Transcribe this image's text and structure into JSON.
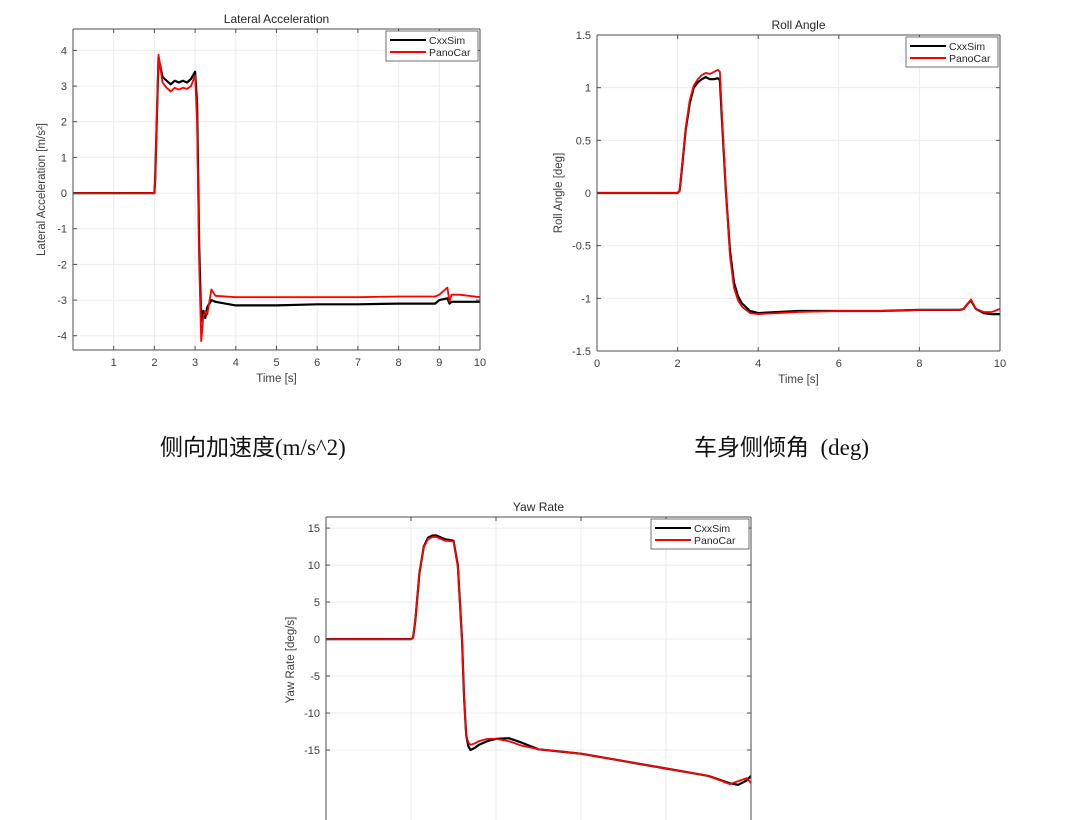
{
  "captions": {
    "lateral": "侧向加速度(m/s^2)",
    "roll": "车身侧倾角  (deg)"
  },
  "series_colors": {
    "CxxSim": "#000000",
    "PanoCar": "#ff0000"
  },
  "chart_data": [
    {
      "id": "lateral",
      "type": "line",
      "title": "Lateral Acceleration",
      "xlabel": "Time [s]",
      "ylabel": "Lateral Acceleration [m/s²]",
      "xlim": [
        0,
        10
      ],
      "ylim": [
        -4.4,
        4.6
      ],
      "xticks": [
        1,
        2,
        3,
        4,
        5,
        6,
        7,
        8,
        9,
        10
      ],
      "yticks": [
        -4,
        -3,
        -2,
        -1,
        0,
        1,
        2,
        3,
        4
      ],
      "grid": true,
      "legend": {
        "position": "northeast",
        "entries": [
          "CxxSim",
          "PanoCar"
        ]
      },
      "series": [
        {
          "name": "CxxSim",
          "color": "#000000",
          "x": [
            0,
            2.0,
            2.02,
            2.1,
            2.2,
            2.3,
            2.4,
            2.5,
            2.6,
            2.7,
            2.8,
            2.9,
            3.0,
            3.05,
            3.1,
            3.15,
            3.2,
            3.25,
            3.3,
            3.4,
            3.5,
            4.0,
            5.0,
            6.0,
            7.0,
            8.0,
            8.9,
            9.0,
            9.2,
            9.25,
            9.3,
            9.5,
            10.0
          ],
          "y": [
            0,
            0,
            0.4,
            3.8,
            3.25,
            3.15,
            3.05,
            3.15,
            3.1,
            3.15,
            3.1,
            3.2,
            3.4,
            2.5,
            -1.5,
            -3.6,
            -3.3,
            -3.5,
            -3.2,
            -3.0,
            -3.05,
            -3.15,
            -3.15,
            -3.12,
            -3.12,
            -3.1,
            -3.1,
            -3.0,
            -2.95,
            -3.1,
            -3.05,
            -3.05,
            -3.05
          ]
        },
        {
          "name": "PanoCar",
          "color": "#ff0000",
          "x": [
            0,
            2.0,
            2.02,
            2.1,
            2.2,
            2.3,
            2.4,
            2.5,
            2.6,
            2.7,
            2.8,
            2.9,
            3.0,
            3.05,
            3.1,
            3.15,
            3.2,
            3.25,
            3.3,
            3.4,
            3.5,
            4.0,
            5.0,
            6.0,
            7.0,
            8.0,
            8.9,
            9.0,
            9.2,
            9.25,
            9.3,
            9.4,
            9.5,
            10.0
          ],
          "y": [
            0,
            0,
            0.4,
            3.88,
            3.1,
            2.95,
            2.85,
            2.95,
            2.9,
            2.95,
            2.92,
            3.0,
            3.3,
            2.0,
            -2.0,
            -4.15,
            -3.5,
            -3.3,
            -3.4,
            -2.7,
            -2.88,
            -2.92,
            -2.92,
            -2.92,
            -2.92,
            -2.9,
            -2.9,
            -2.85,
            -2.65,
            -3.05,
            -2.85,
            -2.85,
            -2.85,
            -2.92
          ]
        }
      ]
    },
    {
      "id": "roll",
      "type": "line",
      "title": "Roll Angle",
      "xlabel": "Time [s]",
      "ylabel": "Roll Angle [deg]",
      "xlim": [
        0,
        10
      ],
      "ylim": [
        -1.5,
        1.5
      ],
      "xticks": [
        0,
        2,
        4,
        6,
        8,
        10
      ],
      "yticks": [
        -1.5,
        -1,
        -0.5,
        0,
        0.5,
        1,
        1.5
      ],
      "grid": true,
      "legend": {
        "position": "northeast",
        "entries": [
          "CxxSim",
          "PanoCar"
        ]
      },
      "series": [
        {
          "name": "CxxSim",
          "color": "#000000",
          "x": [
            0,
            2.0,
            2.05,
            2.1,
            2.2,
            2.3,
            2.4,
            2.5,
            2.6,
            2.7,
            2.8,
            2.9,
            3.0,
            3.05,
            3.1,
            3.2,
            3.3,
            3.4,
            3.5,
            3.6,
            3.8,
            4.0,
            4.5,
            5.0,
            6.0,
            7.0,
            8.0,
            9.0,
            9.1,
            9.2,
            9.28,
            9.4,
            9.6,
            9.8,
            10.0
          ],
          "y": [
            0,
            0,
            0.02,
            0.2,
            0.6,
            0.85,
            1.0,
            1.05,
            1.08,
            1.1,
            1.08,
            1.08,
            1.09,
            1.07,
            0.7,
            0.0,
            -0.55,
            -0.85,
            -0.98,
            -1.05,
            -1.12,
            -1.14,
            -1.13,
            -1.12,
            -1.12,
            -1.12,
            -1.11,
            -1.11,
            -1.1,
            -1.05,
            -1.02,
            -1.1,
            -1.14,
            -1.15,
            -1.15
          ]
        },
        {
          "name": "PanoCar",
          "color": "#ff0000",
          "x": [
            0,
            2.0,
            2.05,
            2.1,
            2.2,
            2.3,
            2.4,
            2.5,
            2.6,
            2.7,
            2.8,
            2.9,
            3.0,
            3.05,
            3.1,
            3.2,
            3.3,
            3.4,
            3.5,
            3.6,
            3.8,
            4.0,
            4.5,
            5.0,
            6.0,
            7.0,
            8.0,
            9.0,
            9.1,
            9.2,
            9.28,
            9.4,
            9.6,
            9.8,
            10.0
          ],
          "y": [
            0,
            0,
            0.02,
            0.22,
            0.62,
            0.88,
            1.02,
            1.08,
            1.12,
            1.14,
            1.13,
            1.15,
            1.17,
            1.15,
            0.75,
            0.0,
            -0.6,
            -0.9,
            -1.02,
            -1.08,
            -1.14,
            -1.15,
            -1.14,
            -1.13,
            -1.12,
            -1.12,
            -1.11,
            -1.11,
            -1.1,
            -1.05,
            -1.01,
            -1.1,
            -1.13,
            -1.13,
            -1.1
          ]
        }
      ]
    },
    {
      "id": "yaw",
      "type": "line",
      "title": "Yaw Rate",
      "xlabel": "",
      "ylabel": "Yaw Rate [deg/s]",
      "xlim": [
        0,
        10
      ],
      "ylim": [
        -25,
        16.5
      ],
      "visible_ylim": [
        -19.5,
        16.5
      ],
      "yticks": [
        -15,
        -10,
        -5,
        0,
        5,
        10,
        15
      ],
      "xgrid": [
        2,
        4,
        6,
        8
      ],
      "grid": true,
      "cropped": "bottom edge cut off in screenshot",
      "legend": {
        "position": "northeast",
        "entries": [
          "CxxSim",
          "PanoCar"
        ]
      },
      "series": [
        {
          "name": "CxxSim",
          "color": "#000000",
          "x": [
            0,
            2.0,
            2.05,
            2.1,
            2.2,
            2.3,
            2.4,
            2.5,
            2.6,
            2.8,
            3.0,
            3.1,
            3.2,
            3.25,
            3.3,
            3.35,
            3.4,
            3.5,
            3.6,
            3.8,
            4.0,
            4.3,
            4.6,
            5.0,
            5.5,
            6.0,
            7.0,
            8.0,
            8.5,
            9.0,
            9.5,
            9.7,
            9.9,
            10.0
          ],
          "y": [
            0,
            0,
            0.2,
            2.5,
            9.0,
            12.5,
            13.7,
            14.0,
            14.0,
            13.5,
            13.3,
            10.0,
            0.0,
            -8.0,
            -13.0,
            -14.5,
            -15.0,
            -14.7,
            -14.3,
            -13.8,
            -13.5,
            -13.4,
            -14.0,
            -14.9,
            -15.2,
            -15.5,
            -16.5,
            -17.5,
            -18.0,
            -18.5,
            -19.5,
            -19.7,
            -19.1,
            -18.5
          ]
        },
        {
          "name": "PanoCar",
          "color": "#ff0000",
          "x": [
            0,
            2.0,
            2.05,
            2.1,
            2.2,
            2.3,
            2.4,
            2.5,
            2.6,
            2.8,
            3.0,
            3.1,
            3.2,
            3.25,
            3.3,
            3.35,
            3.4,
            3.5,
            3.6,
            3.8,
            4.0,
            4.3,
            4.6,
            5.0,
            5.5,
            6.0,
            7.0,
            8.0,
            8.5,
            9.0,
            9.5,
            9.7,
            9.9,
            10.0
          ],
          "y": [
            0,
            0,
            0.2,
            2.6,
            9.2,
            12.4,
            13.5,
            13.8,
            13.8,
            13.3,
            13.2,
            9.8,
            0.0,
            -8.0,
            -13.0,
            -14.0,
            -14.3,
            -14.1,
            -13.8,
            -13.5,
            -13.5,
            -13.8,
            -14.4,
            -14.9,
            -15.2,
            -15.5,
            -16.5,
            -17.5,
            -18.0,
            -18.5,
            -19.6,
            -19.2,
            -18.8,
            -19.5
          ]
        }
      ]
    }
  ]
}
